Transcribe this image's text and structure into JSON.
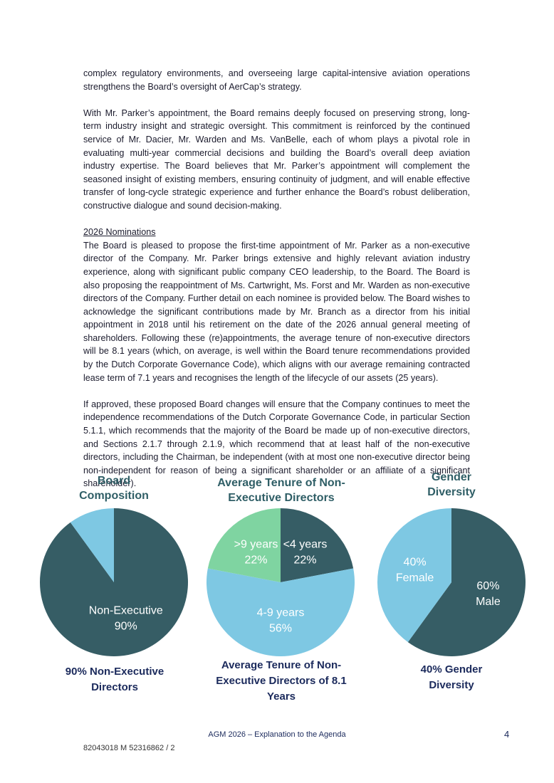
{
  "body": {
    "paragraphs": [
      "complex regulatory environments, and overseeing large capital-intensive aviation operations strengthens the Board’s oversight of AerCap’s strategy.",
      "With Mr. Parker’s appointment, the Board remains deeply focused on preserving strong, long-term industry insight and strategic oversight. This commitment is reinforced by the continued service of Mr. Dacier, Mr. Warden and Ms. VanBelle, each of whom plays a pivotal role in evaluating multi-year commercial decisions and building the Board’s overall deep aviation industry expertise. The Board believes that Mr. Parker’s appointment will complement the seasoned insight of existing members, ensuring continuity of judgment, and will enable effective transfer of long-cycle strategic experience and further enhance the Board’s robust deliberation, constructive dialogue and sound decision-making."
    ],
    "heading": "2026 Nominations",
    "paragraphs_after": [
      "The Board is pleased to propose the first-time appointment of Mr. Parker as a non-executive director of the Company. Mr. Parker brings extensive and highly relevant aviation industry experience, along with significant public company CEO leadership, to the Board. The Board is also proposing the reappointment of Ms. Cartwright, Ms. Forst and Mr. Warden as non-executive directors of the Company. Further detail on each nominee is provided below. The Board wishes to acknowledge the significant contributions made by Mr. Branch as a director from his initial appointment in 2018 until his retirement on the date of the 2026 annual general meeting of shareholders. Following these (re)appointments, the average tenure of non-executive directors will be 8.1 years (which, on average, is well within the Board tenure recommendations provided by the Dutch Corporate Governance Code), which aligns with our average remaining contracted lease term of 7.1 years and recognises the length of the lifecycle of our assets (25 years).",
      "If approved, these proposed Board changes will ensure that the Company continues to meet the independence recommendations of the Dutch Corporate Governance Code, in particular Section 5.1.1, which recommends that the majority of the Board be made up of non-executive directors, and Sections 2.1.7 through 2.1.9, which recommend that at least half of the non-executive directors, including the Chairman, be independent (with at most one non-executive director being non-independent for reason of being a significant shareholder or an affiliate of a significant shareholder)."
    ]
  },
  "chart_data": [
    {
      "type": "pie",
      "title": "Board Composition",
      "caption": "90% Non-Executive Directors",
      "categories": [
        "Non-Executive",
        null
      ],
      "values": [
        90,
        10
      ],
      "value_labels": [
        "90%",
        null
      ],
      "colors": [
        "#365d65",
        "#7ec8e3"
      ]
    },
    {
      "type": "pie",
      "title": "Average Tenure of Non-Executive Directors",
      "caption": "Average Tenure of Non-Executive Directors of 8.1 Years",
      "categories": [
        "<4 years",
        "4-9 years",
        ">9 years"
      ],
      "values": [
        22,
        56,
        22
      ],
      "value_labels": [
        "22%",
        "56%",
        "22%"
      ],
      "colors": [
        "#365d65",
        "#7ec8e3",
        "#7fd4a1"
      ]
    },
    {
      "type": "pie",
      "title": "Gender Diversity",
      "caption": "40% Gender Diversity",
      "categories": [
        "Male",
        "Female"
      ],
      "values": [
        60,
        40
      ],
      "value_labels": [
        "60%",
        "40%"
      ],
      "colors": [
        "#365d65",
        "#7ec8e3"
      ]
    }
  ],
  "footer": {
    "center": "AGM 2026 – Explanation to the Agenda",
    "page": "4",
    "reference": "82043018 M 52316862 / 2"
  }
}
